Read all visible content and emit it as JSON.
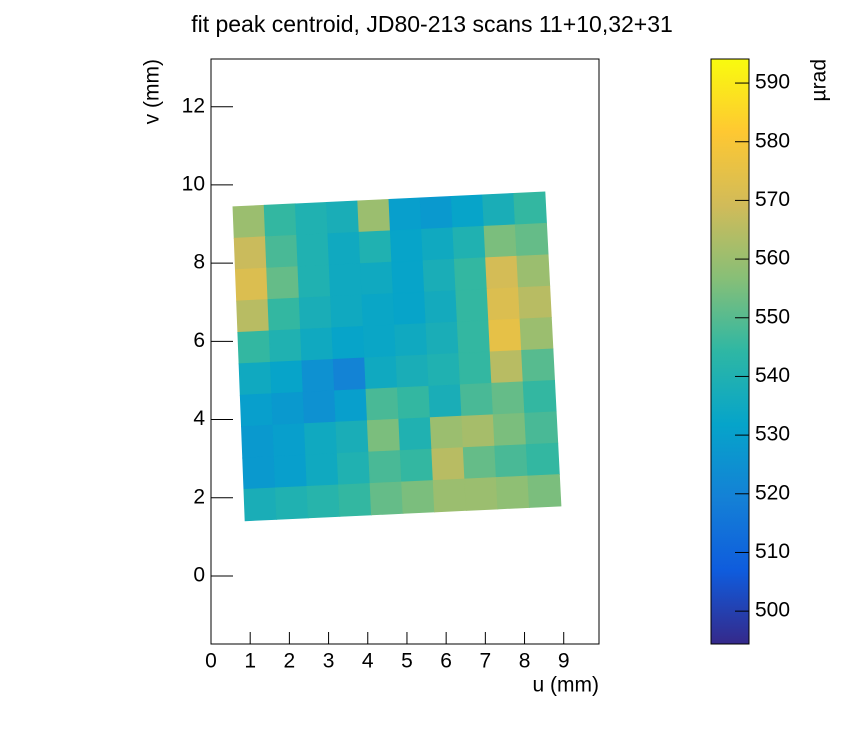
{
  "chart_data": {
    "type": "heatmap",
    "title": "fit peak centroid, JD80-213 scans 11+10,32+31",
    "x_label": "u (mm)",
    "y_label": "v (mm)",
    "z_label": "µrad",
    "xlim": [
      0,
      9.9
    ],
    "ylim": [
      -1.74,
      13.22
    ],
    "zlim": [
      494.4,
      594.1
    ],
    "xticks": [
      0,
      1,
      2,
      3,
      4,
      5,
      6,
      7,
      8,
      9
    ],
    "yticks": [
      0,
      2,
      4,
      6,
      8,
      10,
      12
    ],
    "zticks": [
      500,
      510,
      520,
      530,
      540,
      550,
      560,
      570,
      580,
      590
    ],
    "sample_corners": {
      "u": [
        0.56,
        8.52,
        8.93,
        0.87
      ],
      "v": [
        9.44,
        9.82,
        1.79,
        1.41
      ]
    },
    "colorscale": [
      "#35298a",
      "#0f5cdd",
      "#1481d6",
      "#06a4ca",
      "#2eb7a4",
      "#87bf77",
      "#d1bb59",
      "#fec832",
      "#f9fb0e"
    ],
    "z": [
      [
        560,
        545,
        540,
        538,
        560,
        530,
        528,
        532,
        538,
        545
      ],
      [
        568,
        548,
        540,
        535,
        540,
        532,
        535,
        540,
        555,
        552
      ],
      [
        572,
        552,
        540,
        535,
        535,
        532,
        538,
        545,
        570,
        560
      ],
      [
        565,
        545,
        538,
        535,
        533,
        532,
        536,
        545,
        572,
        565
      ],
      [
        545,
        540,
        535,
        532,
        533,
        535,
        538,
        545,
        575,
        560
      ],
      [
        535,
        532,
        525,
        520,
        535,
        538,
        540,
        545,
        565,
        550
      ],
      [
        530,
        528,
        525,
        530,
        548,
        545,
        538,
        548,
        552,
        545
      ],
      [
        528,
        530,
        535,
        538,
        555,
        540,
        560,
        562,
        555,
        548
      ],
      [
        528,
        530,
        535,
        540,
        548,
        545,
        565,
        552,
        548,
        545
      ],
      [
        538,
        540,
        542,
        545,
        552,
        555,
        560,
        560,
        558,
        555
      ]
    ]
  }
}
